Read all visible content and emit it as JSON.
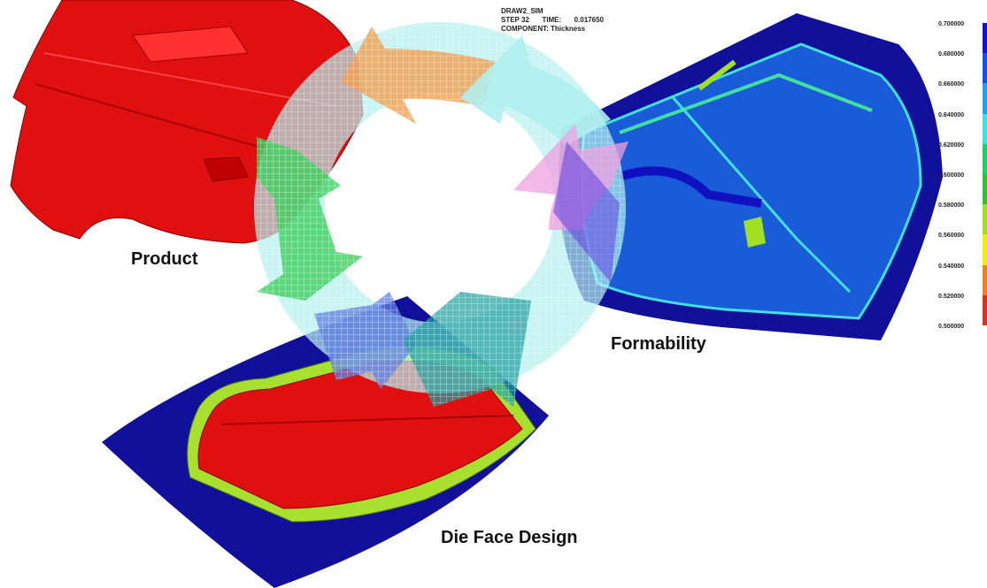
{
  "stages": {
    "product": "Product",
    "formability": "Formability",
    "die_face": "Die Face Design"
  },
  "simulation": {
    "title": "DRAW2_SIM",
    "step_label": "STEP 32",
    "time_label": "TIME:",
    "time_value": "0.017650",
    "component": "COMPONENT: Thickness"
  },
  "legend": {
    "ticks": [
      "0.700000",
      "0.680000",
      "0.660000",
      "0.640000",
      "0.620000",
      "0.600000",
      "0.580000",
      "0.560000",
      "0.540000",
      "0.520000",
      "0.500000"
    ],
    "colors": [
      "#1010e0",
      "#1050f0",
      "#20a0f0",
      "#40e0e0",
      "#20d060",
      "#30c030",
      "#a0e020",
      "#f0f000",
      "#f08020",
      "#e03020"
    ]
  },
  "colors": {
    "part_red": "#e01010",
    "binder_blue": "#10109a",
    "trim_green": "#a8e030",
    "arrow_orange": "#f0a050",
    "arrow_cyan": "#b0f0f0",
    "arrow_pink": "#f0a0e0",
    "arrow_green": "#40d060",
    "arrow_blue": "#6080e0",
    "arrow_teal": "#20a0a0"
  }
}
